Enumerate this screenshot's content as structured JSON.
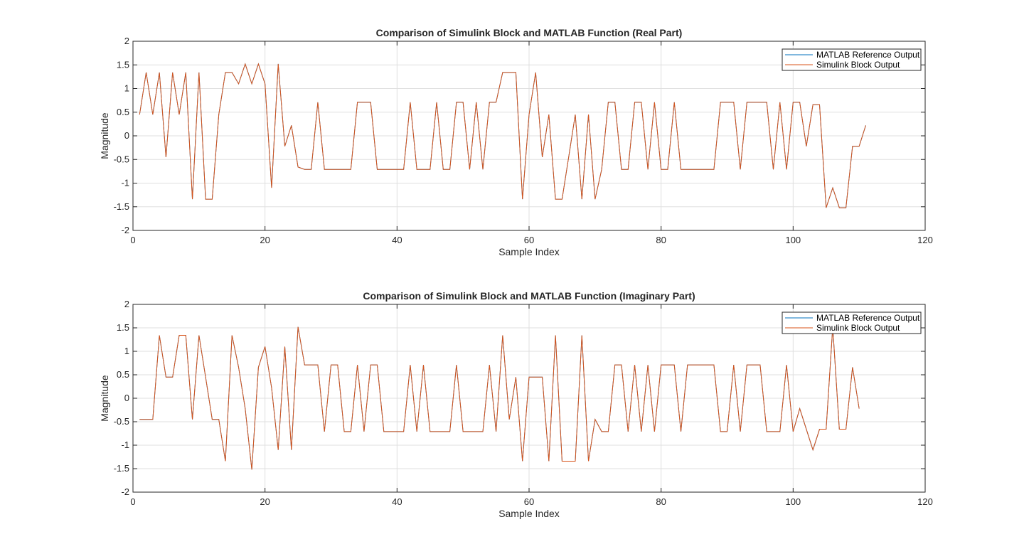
{
  "colors": {
    "reference": "#0072BD",
    "simulink": "#D95319",
    "grid": "#DFDFDF",
    "axis": "#262626",
    "background": "#FFFFFF"
  },
  "chart_data": [
    {
      "type": "line",
      "title": "Comparison of Simulink Block and MATLAB Function (Real Part)",
      "xlabel": "Sample Index",
      "ylabel": "Magnitude",
      "xlim": [
        0,
        120
      ],
      "ylim": [
        -2,
        2
      ],
      "xticks": [
        "0",
        "20",
        "40",
        "60",
        "80",
        "100",
        "120"
      ],
      "yticks": [
        "-2",
        "-1.5",
        "-1",
        "-0.5",
        "0",
        "0.5",
        "1",
        "1.5",
        "2"
      ],
      "grid": true,
      "legend_position": "top-right",
      "series": [
        {
          "name": "MATLAB Reference Output",
          "values": [
            0.45,
            1.34,
            0.45,
            1.34,
            -0.45,
            1.34,
            0.45,
            1.34,
            -1.34,
            1.34,
            -1.34,
            -1.34,
            0.45,
            1.34,
            1.34,
            1.1,
            1.52,
            1.1,
            1.52,
            1.1,
            -1.1,
            1.52,
            -0.22,
            0.22,
            -0.66,
            -0.71,
            -0.71,
            0.71,
            -0.71,
            -0.71,
            -0.71,
            -0.71,
            -0.71,
            0.71,
            0.71,
            0.71,
            -0.71,
            -0.71,
            -0.71,
            -0.71,
            -0.71,
            0.71,
            -0.71,
            -0.71,
            -0.71,
            0.71,
            -0.71,
            -0.71,
            0.71,
            0.71,
            -0.71,
            0.71,
            -0.71,
            0.71,
            0.71,
            1.34,
            1.34,
            1.34,
            -1.34,
            0.45,
            1.34,
            -0.45,
            0.45,
            -1.34,
            -1.34,
            -0.45,
            0.45,
            -1.34,
            0.45,
            -1.34,
            -0.71,
            0.71,
            0.71,
            -0.71,
            -0.71,
            0.71,
            0.71,
            -0.71,
            0.71,
            -0.71,
            -0.71,
            0.71,
            -0.71,
            -0.71,
            -0.71,
            -0.71,
            -0.71,
            -0.71,
            0.71,
            0.71,
            0.71,
            -0.71,
            0.71,
            0.71,
            0.71,
            0.71,
            -0.71,
            0.71,
            -0.71,
            0.71,
            0.71,
            -0.22,
            0.66,
            0.66,
            -1.52,
            -1.1,
            -1.52,
            -1.52,
            -0.22,
            -0.22,
            0.22
          ]
        },
        {
          "name": "Simulink Block Output",
          "values": [
            0.45,
            1.34,
            0.45,
            1.34,
            -0.45,
            1.34,
            0.45,
            1.34,
            -1.34,
            1.34,
            -1.34,
            -1.34,
            0.45,
            1.34,
            1.34,
            1.1,
            1.52,
            1.1,
            1.52,
            1.1,
            -1.1,
            1.52,
            -0.22,
            0.22,
            -0.66,
            -0.71,
            -0.71,
            0.71,
            -0.71,
            -0.71,
            -0.71,
            -0.71,
            -0.71,
            0.71,
            0.71,
            0.71,
            -0.71,
            -0.71,
            -0.71,
            -0.71,
            -0.71,
            0.71,
            -0.71,
            -0.71,
            -0.71,
            0.71,
            -0.71,
            -0.71,
            0.71,
            0.71,
            -0.71,
            0.71,
            -0.71,
            0.71,
            0.71,
            1.34,
            1.34,
            1.34,
            -1.34,
            0.45,
            1.34,
            -0.45,
            0.45,
            -1.34,
            -1.34,
            -0.45,
            0.45,
            -1.34,
            0.45,
            -1.34,
            -0.71,
            0.71,
            0.71,
            -0.71,
            -0.71,
            0.71,
            0.71,
            -0.71,
            0.71,
            -0.71,
            -0.71,
            0.71,
            -0.71,
            -0.71,
            -0.71,
            -0.71,
            -0.71,
            -0.71,
            0.71,
            0.71,
            0.71,
            -0.71,
            0.71,
            0.71,
            0.71,
            0.71,
            -0.71,
            0.71,
            -0.71,
            0.71,
            0.71,
            -0.22,
            0.66,
            0.66,
            -1.52,
            -1.1,
            -1.52,
            -1.52,
            -0.22,
            -0.22,
            0.22
          ]
        }
      ]
    },
    {
      "type": "line",
      "title": "Comparison of Simulink Block and MATLAB Function (Imaginary Part)",
      "xlabel": "Sample Index",
      "ylabel": "Magnitude",
      "xlim": [
        0,
        120
      ],
      "ylim": [
        -2,
        2
      ],
      "xticks": [
        "0",
        "20",
        "40",
        "60",
        "80",
        "100",
        "120"
      ],
      "yticks": [
        "-2",
        "-1.5",
        "-1",
        "-0.5",
        "0",
        "0.5",
        "1",
        "1.5",
        "2"
      ],
      "grid": true,
      "legend_position": "top-right",
      "series": [
        {
          "name": "MATLAB Reference Output",
          "values": [
            -0.45,
            -0.45,
            -0.45,
            1.34,
            0.45,
            0.45,
            1.34,
            1.34,
            -0.45,
            1.34,
            0.45,
            -0.45,
            -0.45,
            -1.34,
            1.34,
            0.66,
            -0.22,
            -1.52,
            0.66,
            1.1,
            0.22,
            -1.1,
            1.1,
            -1.1,
            1.52,
            0.71,
            0.71,
            0.71,
            -0.71,
            0.71,
            0.71,
            -0.71,
            -0.71,
            0.71,
            -0.71,
            0.71,
            0.71,
            -0.71,
            -0.71,
            -0.71,
            -0.71,
            0.71,
            -0.71,
            0.71,
            -0.71,
            -0.71,
            -0.71,
            -0.71,
            0.71,
            -0.71,
            -0.71,
            -0.71,
            -0.71,
            0.71,
            -0.71,
            1.34,
            -0.45,
            0.45,
            -1.34,
            0.45,
            0.45,
            0.45,
            -1.34,
            1.34,
            -1.34,
            -1.34,
            -1.34,
            1.34,
            -1.34,
            -0.45,
            -0.71,
            -0.71,
            0.71,
            0.71,
            -0.71,
            0.71,
            -0.71,
            0.71,
            -0.71,
            0.71,
            0.71,
            0.71,
            -0.71,
            0.71,
            0.71,
            0.71,
            0.71,
            0.71,
            -0.71,
            -0.71,
            0.71,
            -0.71,
            0.71,
            0.71,
            0.71,
            -0.71,
            -0.71,
            -0.71,
            0.71,
            -0.71,
            -0.22,
            -0.66,
            -1.1,
            -0.66,
            -0.66,
            1.52,
            -0.66,
            -0.66,
            0.66,
            -0.22
          ]
        },
        {
          "name": "Simulink Block Output",
          "values": [
            -0.45,
            -0.45,
            -0.45,
            1.34,
            0.45,
            0.45,
            1.34,
            1.34,
            -0.45,
            1.34,
            0.45,
            -0.45,
            -0.45,
            -1.34,
            1.34,
            0.66,
            -0.22,
            -1.52,
            0.66,
            1.1,
            0.22,
            -1.1,
            1.1,
            -1.1,
            1.52,
            0.71,
            0.71,
            0.71,
            -0.71,
            0.71,
            0.71,
            -0.71,
            -0.71,
            0.71,
            -0.71,
            0.71,
            0.71,
            -0.71,
            -0.71,
            -0.71,
            -0.71,
            0.71,
            -0.71,
            0.71,
            -0.71,
            -0.71,
            -0.71,
            -0.71,
            0.71,
            -0.71,
            -0.71,
            -0.71,
            -0.71,
            0.71,
            -0.71,
            1.34,
            -0.45,
            0.45,
            -1.34,
            0.45,
            0.45,
            0.45,
            -1.34,
            1.34,
            -1.34,
            -1.34,
            -1.34,
            1.34,
            -1.34,
            -0.45,
            -0.71,
            -0.71,
            0.71,
            0.71,
            -0.71,
            0.71,
            -0.71,
            0.71,
            -0.71,
            0.71,
            0.71,
            0.71,
            -0.71,
            0.71,
            0.71,
            0.71,
            0.71,
            0.71,
            -0.71,
            -0.71,
            0.71,
            -0.71,
            0.71,
            0.71,
            0.71,
            -0.71,
            -0.71,
            -0.71,
            0.71,
            -0.71,
            -0.22,
            -0.66,
            -1.1,
            -0.66,
            -0.66,
            1.52,
            -0.66,
            -0.66,
            0.66,
            -0.22
          ]
        }
      ]
    }
  ]
}
